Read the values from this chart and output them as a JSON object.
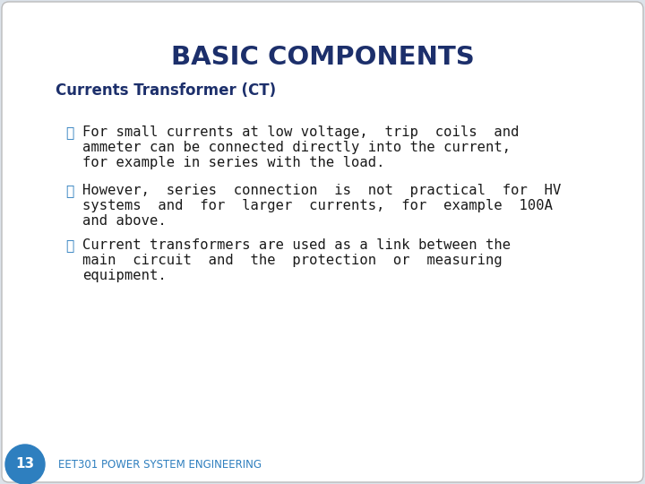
{
  "title": "BASIC COMPONENTS",
  "title_color": "#1c2f6b",
  "subtitle": "Currents Transformer (CT)",
  "subtitle_color": "#1c2f6b",
  "outer_bg": "#dce3ea",
  "slide_bg": "#ffffff",
  "bullet_color": "#2e7fbf",
  "text_color": "#1a1a1a",
  "footer_text": "EET301 POWER SYSTEM ENGINEERING",
  "footer_color": "#2e7fbf",
  "page_number": "13",
  "page_bg": "#2e7fbf",
  "page_text_color": "#ffffff",
  "bullet_lines": [
    [
      "For small currents at low voltage,  trip  coils  and",
      "ammeter can be connected directly into the current,",
      "for example in series with the load."
    ],
    [
      "However,  series  connection  is  not  practical  for  HV",
      "systems  and  for  larger  currents,  for  example  100A",
      "and above."
    ],
    [
      "Current transformers are used as a link between the",
      "main  circuit  and  the  protection  or  measuring",
      "equipment."
    ]
  ]
}
